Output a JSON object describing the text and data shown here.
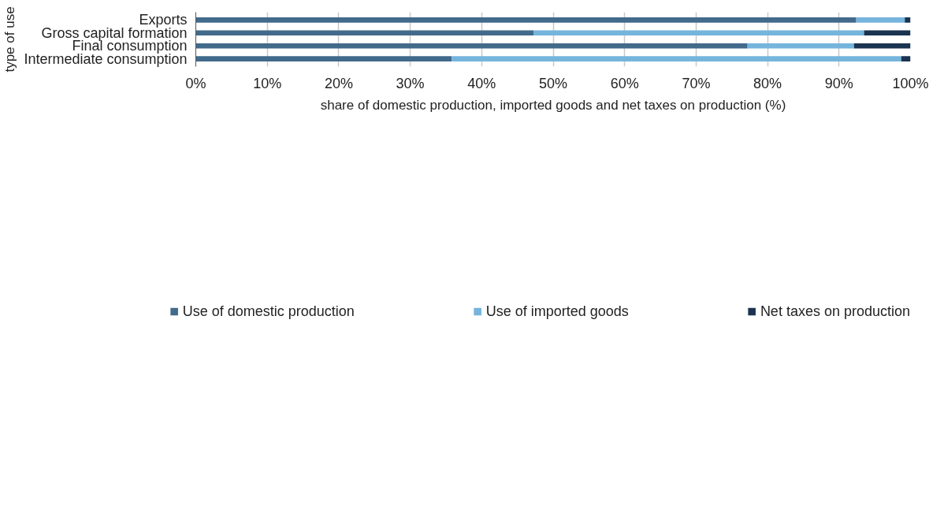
{
  "chart_data": {
    "type": "bar",
    "orientation": "horizontal",
    "stacked": true,
    "xlabel": "share of domestic production, imported goods and net taxes on production (%)",
    "ylabel": "type of use",
    "categories": [
      "Exports",
      "Gross capital formation",
      "Final consumption",
      "Intermediate consumption"
    ],
    "series": [
      {
        "name": "Use of domestic production",
        "color": "#426a8b",
        "values": [
          92.4,
          47.3,
          77.2,
          35.8
        ]
      },
      {
        "name": "Use of imported goods",
        "color": "#75b4dc",
        "values": [
          6.8,
          46.2,
          14.9,
          62.9
        ]
      },
      {
        "name": "Net taxes on production",
        "color": "#1a3350",
        "values": [
          0.8,
          6.5,
          7.9,
          1.3
        ]
      }
    ],
    "xlim": [
      0,
      100
    ],
    "xticks": [
      {
        "value": 0,
        "label": "0%"
      },
      {
        "value": 10,
        "label": "10%"
      },
      {
        "value": 20,
        "label": "20%"
      },
      {
        "value": 30,
        "label": "30%"
      },
      {
        "value": 40,
        "label": "40%"
      },
      {
        "value": 50,
        "label": "50%"
      },
      {
        "value": 60,
        "label": "60%"
      },
      {
        "value": 70,
        "label": "70%"
      },
      {
        "value": 80,
        "label": "80%"
      },
      {
        "value": 90,
        "label": "90%"
      },
      {
        "value": 100,
        "label": "100%"
      }
    ],
    "grid": "x",
    "legend": "bottom"
  }
}
